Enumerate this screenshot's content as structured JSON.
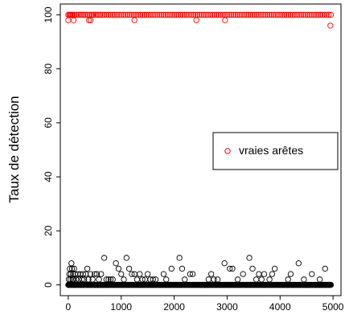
{
  "colors": {
    "series_red": "#ff0000",
    "series_black": "#000000",
    "frame": "#000000",
    "background": "#ffffff"
  },
  "chart_data": {
    "type": "scatter",
    "title": "",
    "xlabel": "",
    "ylabel": "Taux de détection",
    "xlim": [
      -150,
      5150
    ],
    "ylim": [
      -4,
      104
    ],
    "x_ticks": [
      0,
      1000,
      2000,
      3000,
      4000,
      5000
    ],
    "y_ticks": [
      0,
      20,
      40,
      60,
      80,
      100
    ],
    "grid": false,
    "marker": "open-circle",
    "legend": {
      "position": "right",
      "entries": [
        {
          "label": "vraies arêtes",
          "color": "#ff0000",
          "marker": "open-circle"
        }
      ]
    },
    "series": [
      {
        "name": "vraies arêtes",
        "color": "#ff0000",
        "baseline_value": 100,
        "baseline_x_range": [
          0,
          4960
        ],
        "baseline_x_step": 40,
        "points": [
          [
            0,
            98
          ],
          [
            20,
            100
          ],
          [
            40,
            100
          ],
          [
            60,
            100
          ],
          [
            80,
            100
          ],
          [
            100,
            98
          ],
          [
            120,
            100
          ],
          [
            160,
            100
          ],
          [
            200,
            100
          ],
          [
            240,
            100
          ],
          [
            280,
            100
          ],
          [
            320,
            100
          ],
          [
            360,
            100
          ],
          [
            390,
            98
          ],
          [
            420,
            98
          ],
          [
            450,
            100
          ],
          [
            480,
            100
          ],
          [
            520,
            100
          ],
          [
            560,
            100
          ],
          [
            600,
            100
          ],
          [
            1250,
            98
          ],
          [
            2420,
            98
          ],
          [
            2960,
            98
          ],
          [
            4950,
            96
          ]
        ]
      },
      {
        "name": "",
        "color": "#000000",
        "baseline_value": 0,
        "baseline_x_range": [
          0,
          4960
        ],
        "baseline_x_step": 8,
        "points": [
          [
            10,
            2
          ],
          [
            20,
            4
          ],
          [
            30,
            6
          ],
          [
            40,
            2
          ],
          [
            50,
            4
          ],
          [
            60,
            8
          ],
          [
            70,
            6
          ],
          [
            80,
            2
          ],
          [
            90,
            4
          ],
          [
            100,
            2
          ],
          [
            110,
            6
          ],
          [
            130,
            4
          ],
          [
            150,
            2
          ],
          [
            180,
            4
          ],
          [
            200,
            2
          ],
          [
            230,
            4
          ],
          [
            260,
            2
          ],
          [
            280,
            4
          ],
          [
            300,
            2
          ],
          [
            330,
            4
          ],
          [
            360,
            6
          ],
          [
            380,
            2
          ],
          [
            420,
            4
          ],
          [
            460,
            2
          ],
          [
            500,
            4
          ],
          [
            540,
            4
          ],
          [
            580,
            2
          ],
          [
            620,
            4
          ],
          [
            680,
            10
          ],
          [
            720,
            2
          ],
          [
            760,
            2
          ],
          [
            800,
            2
          ],
          [
            840,
            2
          ],
          [
            900,
            8
          ],
          [
            950,
            6
          ],
          [
            1000,
            4
          ],
          [
            1050,
            2
          ],
          [
            1100,
            10
          ],
          [
            1150,
            6
          ],
          [
            1200,
            4
          ],
          [
            1250,
            4
          ],
          [
            1300,
            2
          ],
          [
            1350,
            4
          ],
          [
            1400,
            2
          ],
          [
            1450,
            2
          ],
          [
            1500,
            4
          ],
          [
            1550,
            2
          ],
          [
            1600,
            2
          ],
          [
            1650,
            2
          ],
          [
            1800,
            4
          ],
          [
            1850,
            2
          ],
          [
            1950,
            6
          ],
          [
            2100,
            10
          ],
          [
            2150,
            6
          ],
          [
            2200,
            2
          ],
          [
            2300,
            4
          ],
          [
            2350,
            4
          ],
          [
            2650,
            2
          ],
          [
            2700,
            4
          ],
          [
            2750,
            2
          ],
          [
            2820,
            2
          ],
          [
            2950,
            8
          ],
          [
            3050,
            6
          ],
          [
            3100,
            6
          ],
          [
            3200,
            2
          ],
          [
            3300,
            4
          ],
          [
            3420,
            10
          ],
          [
            3480,
            6
          ],
          [
            3550,
            2
          ],
          [
            3600,
            4
          ],
          [
            3650,
            2
          ],
          [
            3700,
            4
          ],
          [
            3800,
            2
          ],
          [
            3850,
            4
          ],
          [
            3900,
            6
          ],
          [
            4150,
            2
          ],
          [
            4200,
            4
          ],
          [
            4350,
            8
          ],
          [
            4450,
            2
          ],
          [
            4600,
            4
          ],
          [
            4750,
            2
          ],
          [
            4850,
            6
          ]
        ]
      }
    ]
  }
}
